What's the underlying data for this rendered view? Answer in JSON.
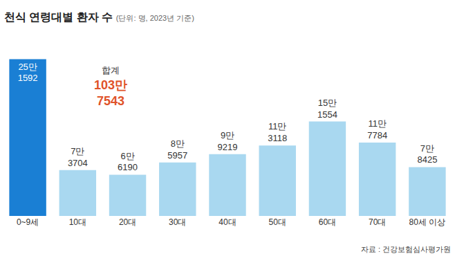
{
  "chart_data": {
    "type": "bar",
    "title": "천식 연령대별 환자 수",
    "subtitle": "(단위: 명, 2023년 기준)",
    "categories": [
      "0~9세",
      "10대",
      "20대",
      "30대",
      "40대",
      "50대",
      "60대",
      "70대",
      "80세 이상"
    ],
    "values": [
      251592,
      73704,
      66190,
      85957,
      99219,
      113118,
      151554,
      117784,
      78425
    ],
    "value_labels": [
      "25만\n1592",
      "7만\n3704",
      "6만\n6190",
      "8만\n5957",
      "9만\n9219",
      "11만\n3118",
      "15만\n1554",
      "11만\n7784",
      "7만\n8425"
    ],
    "colors": [
      "#1a7fd4",
      "#a9d8f0",
      "#a9d8f0",
      "#a9d8f0",
      "#a9d8f0",
      "#a9d8f0",
      "#a9d8f0",
      "#a9d8f0",
      "#a9d8f0"
    ],
    "ylim": [
      0,
      260000
    ],
    "data_labels": true,
    "tick_labels": "x",
    "grid": false,
    "annotations": [
      {
        "text": "합계"
      },
      {
        "text": "103만\n7543",
        "value": 1037543,
        "color": "#e0532a"
      }
    ],
    "source": "자료 : 건강보험심사평가원"
  }
}
